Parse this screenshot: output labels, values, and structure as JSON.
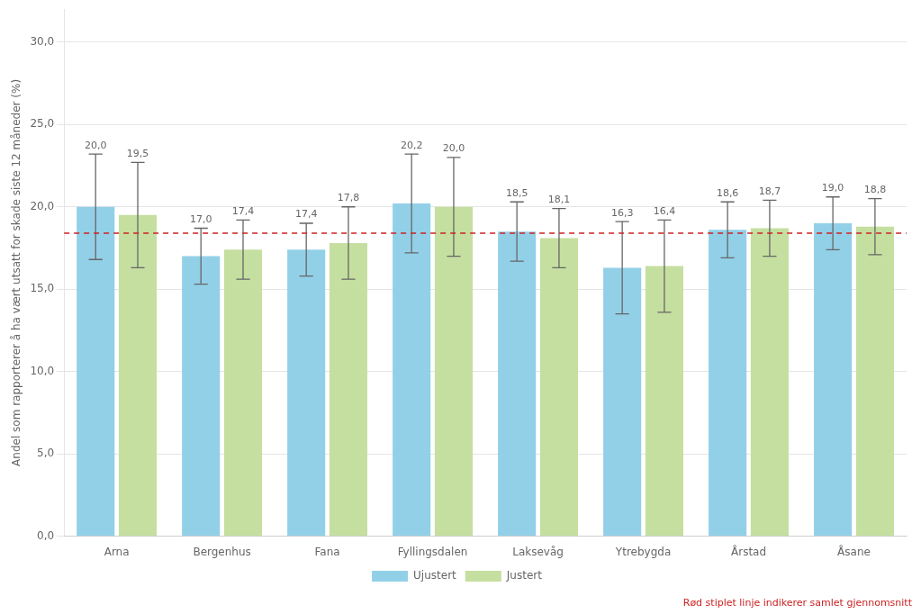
{
  "chart_data": {
    "type": "bar",
    "categories": [
      "Arna",
      "Bergenhus",
      "Fana",
      "Fyllingsdalen",
      "Laksevåg",
      "Ytrebygda",
      "Årstad",
      "Åsane"
    ],
    "series": [
      {
        "name": "Ujustert",
        "color": "#92D0E8",
        "values": [
          20.0,
          17.0,
          17.4,
          20.2,
          18.5,
          16.3,
          18.6,
          19.0
        ],
        "value_labels": [
          "20,0",
          "17,0",
          "17,4",
          "20,2",
          "18,5",
          "16,3",
          "18,6",
          "19,0"
        ],
        "ci_low": [
          16.8,
          15.3,
          15.8,
          17.2,
          16.7,
          13.5,
          16.9,
          17.4
        ],
        "ci_high": [
          23.2,
          18.7,
          19.0,
          23.2,
          20.3,
          19.1,
          20.3,
          20.6
        ]
      },
      {
        "name": "Justert",
        "color": "#C5DFA0",
        "values": [
          19.5,
          17.4,
          17.8,
          20.0,
          18.1,
          16.4,
          18.7,
          18.8
        ],
        "value_labels": [
          "19,5",
          "17,4",
          "17,8",
          "20,0",
          "18,1",
          "16,4",
          "18,7",
          "18,8"
        ],
        "ci_low": [
          16.3,
          15.6,
          15.6,
          17.0,
          16.3,
          13.6,
          17.0,
          17.1
        ],
        "ci_high": [
          22.7,
          19.2,
          20.0,
          23.0,
          19.9,
          19.2,
          20.4,
          20.5
        ]
      }
    ],
    "reference_line": {
      "value": 18.4,
      "color": "#CC2222",
      "line_style": "dashed"
    },
    "annotations": [
      {
        "text": "Rød stiplet linje indikerer samlet gjennomsnitt",
        "color": "#CC2222"
      }
    ],
    "ylabel": "Andel som rapporterer å ha vært utsatt for skade siste 12 måneder (%)",
    "ylim": [
      0,
      32
    ],
    "yticks": [
      {
        "value": 0,
        "label": "0,0"
      },
      {
        "value": 5,
        "label": "5,0"
      },
      {
        "value": 10,
        "label": "10,0"
      },
      {
        "value": 15,
        "label": "15,0"
      },
      {
        "value": 20,
        "label": "20,0"
      },
      {
        "value": 25,
        "label": "25,0"
      },
      {
        "value": 30,
        "label": "30,0"
      }
    ],
    "grid": true,
    "legend": "bottom",
    "data_labels": true
  }
}
